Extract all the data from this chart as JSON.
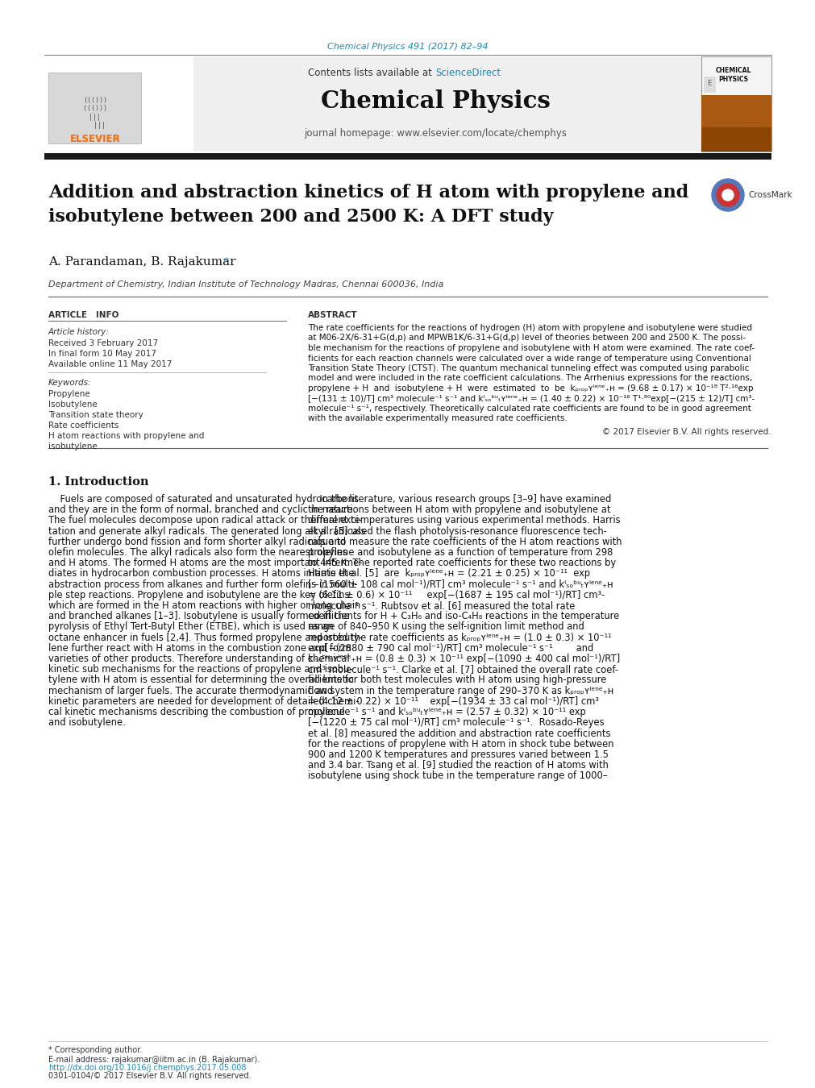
{
  "bg_color": "#ffffff",
  "journal_ref": "Chemical Physics 491 (2017) 82–94",
  "journal_ref_color": "#1a8ab5",
  "header_bg": "#f0f0f0",
  "contents_text": "Contents lists available at ",
  "sciencedirect_text": "ScienceDirect",
  "sciencedirect_color": "#1a8ab5",
  "journal_name": "Chemical Physics",
  "homepage_text": "journal homepage: www.elsevier.com/locate/chemphys",
  "elsevier_color": "#ff6600",
  "elsevier_text": "ELSEVIER",
  "title_line1": "Addition and abstraction kinetics of H atom with propylene and",
  "title_line2": "isobutylene between 200 and 2500 K: A DFT study",
  "authors": "A. Parandaman, B. Rajakumar",
  "affiliation": "Department of Chemistry, Indian Institute of Technology Madras, Chennai 600036, India",
  "article_info_header": "ARTICLE   INFO",
  "abstract_header": "ABSTRACT",
  "article_history_label": "Article history:",
  "received": "Received 3 February 2017",
  "in_final": "In final form 10 May 2017",
  "available": "Available online 11 May 2017",
  "keywords_label": "Keywords:",
  "keywords": [
    "Propylene",
    "Isobutylene",
    "Transition state theory",
    "Rate coefficients",
    "H atom reactions with propylene and",
    "isobutylene"
  ],
  "abstract_lines": [
    "The rate coefficients for the reactions of hydrogen (H) atom with propylene and isobutylene were studied",
    "at M06-2X/6-31+G(d,p) and MPWB1K/6-31+G(d,p) level of theories between 200 and 2500 K. The possi-",
    "ble mechanism for the reactions of propylene and isobutylene with H atom were examined. The rate coef-",
    "ficients for each reaction channels were calculated over a wide range of temperature using Conventional",
    "Transition State Theory (CTST). The quantum mechanical tunneling effect was computed using parabolic",
    "model and were included in the rate coefficient calculations. The Arrhenius expressions for the reactions,",
    "propylene + H  and  isobutylene + H  were  estimated  to  be  kₚᵣₒₚʏˡᵉⁿᵉ₊ʜ = (9.68 ± 0.17) × 10⁻¹⁸ T²·¹⁶exp",
    "[−(131 ± 10)/T] cm³ molecule⁻¹ s⁻¹ and kᴵₛₒᵇᵘₜʏˡᵉⁿᵉ₊ʜ = (1.40 ± 0.22) × 10⁻¹⁶ T¹·⁸⁰exp[−(215 ± 12)/T] cm³-",
    "molecule⁻¹ s⁻¹, respectively. Theoretically calculated rate coefficients are found to be in good agreement",
    "with the available experimentally measured rate coefficients."
  ],
  "copyright": "© 2017 Elsevier B.V. All rights reserved.",
  "section1_title": "1. Introduction",
  "intro_left_lines": [
    "    Fuels are composed of saturated and unsaturated hydrocarbons",
    "and they are in the form of normal, branched and cyclic in nature.",
    "The fuel molecules decompose upon radical attack or thermal exci-",
    "tation and generate alkyl radicals. The generated long alkyl radicals",
    "further undergo bond fission and form shorter alkyl radicals and",
    "olefin molecules. The alkyl radicals also form the nearest olefins",
    "and H atoms. The formed H atoms are the most important interme-",
    "diates in hydrocarbon combustion processes. H atoms initiate the",
    "abstraction process from alkanes and further form olefins in multi-",
    "ple step reactions. Propylene and isobutylene are the key olefins",
    "which are formed in the H atom reactions with higher or long chain",
    "and branched alkanes [1–3]. Isobutylene is usually formed in the",
    "pyrolysis of Ethyl Tert-Butyl Ether (ETBE), which is used as an",
    "octane enhancer in fuels [2,4]. Thus formed propylene and isobuty-",
    "lene further react with H atoms in the combustion zone and form",
    "varieties of other products. Therefore understanding of chemical",
    "kinetic sub mechanisms for the reactions of propylene and isobu-",
    "tylene with H atom is essential for determining the overall kinetic",
    "mechanism of larger fuels. The accurate thermodynamic and",
    "kinetic parameters are needed for development of detailed chemi-",
    "cal kinetic mechanisms describing the combustion of propylene",
    "and isobutylene."
  ],
  "intro_right_lines": [
    "    In the literature, various research groups [3–9] have examined",
    "the reactions between H atom with propylene and isobutylene at",
    "different temperatures using various experimental methods. Harris",
    "et al. [5] used the flash photolysis-resonance fluorescence tech-",
    "nique to measure the rate coefficients of the H atom reactions with",
    "propylene and isobutylene as a function of temperature from 298",
    "to 445 K. The reported rate coefficients for these two reactions by",
    "Harris et al. [5]  are  kₚᵣₒₚʏˡᵉⁿᵉ₊ʜ = (2.21 ± 0.25) × 10⁻¹¹  exp",
    "[−(1560 ± 108 cal mol⁻¹)/RT] cm³ molecule⁻¹ s⁻¹ and kᴵₛₒᵇᵘₜʏˡᵉⁿᵉ₊ʜ",
    "= (6.11 ± 0.6) × 10⁻¹¹     exp[−(1687 ± 195 cal mol⁻¹)/RT] cm³-",
    "molecule⁻¹ s⁻¹. Rubtsov et al. [6] measured the total rate",
    "coefficients for H + C₃H₆ and iso-C₄H₈ reactions in the temperature",
    "range of 840–950 K using the self-ignition limit method and",
    "reported the rate coefficients as kₚᵣₒₚʏˡᵉⁿᵉ₊ʜ = (1.0 ± 0.3) × 10⁻¹¹",
    "exp[−(2880 ± 790 cal mol⁻¹)/RT] cm³ molecule⁻¹ s⁻¹        and",
    "kᴵₛₒᵇᵘₜʏˡᵉⁿᵉ₊ʜ = (0.8 ± 0.3) × 10⁻¹¹ exp[−(1090 ± 400 cal mol⁻¹)/RT]",
    "cm³ molecule⁻¹ s⁻¹. Clarke et al. [7] obtained the overall rate coef-",
    "ficients for both test molecules with H atom using high-pressure",
    "flow system in the temperature range of 290–370 K as kₚᵣₒₚʏˡᵉⁿᵉ₊ʜ",
    "= (4.12 ± 0.22) × 10⁻¹¹    exp[−(1934 ± 33 cal mol⁻¹)/RT] cm³",
    "molecule⁻¹ s⁻¹ and kᴵₛₒᵇᵘₜʏˡᵉⁿᵉ₊ʜ = (2.57 ± 0.32) × 10⁻¹¹ exp",
    "[−(1220 ± 75 cal mol⁻¹)/RT] cm³ molecule⁻¹ s⁻¹.  Rosado-Reyes",
    "et al. [8] measured the addition and abstraction rate coefficients",
    "for the reactions of propylene with H atom in shock tube between",
    "900 and 1200 K temperatures and pressures varied between 1.5",
    "and 3.4 bar. Tsang et al. [9] studied the reaction of H atoms with",
    "isobutylene using shock tube in the temperature range of 1000–"
  ],
  "footer_star": "* Corresponding author.",
  "footer_email": "E-mail address: rajakumar@iitm.ac.in (B. Rajakumar).",
  "footer_doi": "http://dx.doi.org/10.1016/j.chemphys.2017.05.008",
  "footer_issn": "0301-0104/© 2017 Elsevier B.V. All rights reserved.",
  "doi_color": "#1a8ab5",
  "black_bar_color": "#1a1a1a"
}
